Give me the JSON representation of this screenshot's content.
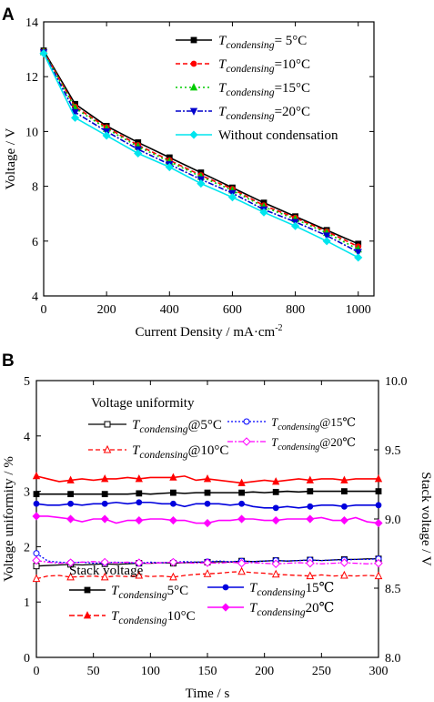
{
  "panels": {
    "a": {
      "label": "A"
    },
    "b": {
      "label": "B"
    }
  },
  "chart_data": [
    {
      "type": "line",
      "panel": "A",
      "xlabel": "Current Density / mA·cm",
      "xlabel_sup": "-2",
      "ylabel": "Voltage / V",
      "xlim": [
        0,
        1050
      ],
      "ylim": [
        4,
        14
      ],
      "xticks": [
        "0",
        "200",
        "400",
        "600",
        "800",
        "1000"
      ],
      "yticks": [
        "4",
        "6",
        "8",
        "10",
        "12",
        "14"
      ],
      "legend_position": "top-right",
      "x": [
        0,
        100,
        200,
        300,
        400,
        500,
        600,
        700,
        800,
        900,
        1000
      ],
      "series": [
        {
          "name": "T",
          "sub": "condensing",
          "suffix": "= 5°C",
          "color": "#000000",
          "dash": "",
          "marker": "square",
          "values": [
            12.95,
            11.0,
            10.2,
            9.6,
            9.05,
            8.5,
            7.95,
            7.4,
            6.9,
            6.4,
            5.9
          ]
        },
        {
          "name": "T",
          "sub": "condensing",
          "suffix": "=10°C",
          "color": "#ff0000",
          "dash": "5,3",
          "marker": "circle",
          "values": [
            12.92,
            10.9,
            10.15,
            9.5,
            8.95,
            8.4,
            7.9,
            7.3,
            6.85,
            6.35,
            5.8
          ]
        },
        {
          "name": "T",
          "sub": "condensing",
          "suffix": "=15°C",
          "color": "#00cc00",
          "dash": "2,3",
          "marker": "triangle",
          "values": [
            12.9,
            10.85,
            10.1,
            9.45,
            8.9,
            8.35,
            7.85,
            7.25,
            6.8,
            6.3,
            5.7
          ]
        },
        {
          "name": "T",
          "sub": "condensing",
          "suffix": "=20°C",
          "color": "#0000cc",
          "dash": "6,2,2,2",
          "marker": "down-triangle",
          "values": [
            12.88,
            10.7,
            10.0,
            9.35,
            8.8,
            8.25,
            7.75,
            7.15,
            6.7,
            6.2,
            5.6
          ]
        },
        {
          "name": "Without condensation",
          "sub": "",
          "suffix": "",
          "color": "#00e5ee",
          "dash": "",
          "marker": "diamond",
          "values": [
            12.85,
            10.5,
            9.85,
            9.2,
            8.7,
            8.1,
            7.6,
            7.05,
            6.55,
            6.0,
            5.4
          ]
        }
      ]
    },
    {
      "type": "line",
      "panel": "B",
      "xlabel": "Time / s",
      "ylabel": "Voltage uniformity / %",
      "ylabel_right": "Stack voltage / V",
      "xlim": [
        0,
        300
      ],
      "ylim": [
        0,
        5
      ],
      "ylim_right": [
        8.0,
        10.0
      ],
      "xticks": [
        "0",
        "50",
        "100",
        "150",
        "200",
        "250",
        "300"
      ],
      "yticks": [
        "0",
        "1",
        "2",
        "3",
        "4",
        "5"
      ],
      "yticks_right": [
        "8.0",
        "8.5",
        "9.0",
        "9.5",
        "10.0"
      ],
      "x": [
        0,
        10,
        20,
        30,
        40,
        50,
        60,
        70,
        80,
        90,
        100,
        110,
        120,
        130,
        140,
        150,
        160,
        170,
        180,
        190,
        200,
        210,
        220,
        230,
        240,
        250,
        260,
        270,
        280,
        290,
        300
      ],
      "legend_uniformity": {
        "heading": "Voltage uniformity",
        "items": [
          {
            "name": "T",
            "sub": "condensing",
            "suffix": "@5°C"
          },
          {
            "name": "T",
            "sub": "condensing",
            "suffix": "@10°C"
          },
          {
            "name": "T",
            "sub": "condensing",
            "suffix": "@15℃"
          },
          {
            "name": "T",
            "sub": "condensing",
            "suffix": "@20℃"
          }
        ]
      },
      "legend_stack": {
        "heading": "Stack voltage",
        "items": [
          {
            "name": "T",
            "sub": "condensing",
            "suffix": "5°C"
          },
          {
            "name": "T",
            "sub": "condensing",
            "suffix": "10°C"
          },
          {
            "name": "T",
            "sub": "condensing",
            "suffix": "15℃"
          },
          {
            "name": "T",
            "sub": "condensing",
            "suffix": "20℃"
          }
        ]
      },
      "uniformity_series": [
        {
          "color": "#000000",
          "marker": "square-open",
          "dash": "",
          "values": [
            1.65,
            1.66,
            1.67,
            1.68,
            1.67,
            1.68,
            1.69,
            1.68,
            1.69,
            1.7,
            1.7,
            1.71,
            1.7,
            1.71,
            1.72,
            1.72,
            1.73,
            1.72,
            1.74,
            1.73,
            1.74,
            1.75,
            1.74,
            1.75,
            1.76,
            1.75,
            1.76,
            1.77,
            1.77,
            1.78,
            1.78
          ]
        },
        {
          "color": "#ff0000",
          "marker": "triangle-open",
          "dash": "5,3",
          "values": [
            1.42,
            1.47,
            1.48,
            1.45,
            1.46,
            1.47,
            1.45,
            1.47,
            1.46,
            1.48,
            1.46,
            1.47,
            1.45,
            1.48,
            1.5,
            1.51,
            1.52,
            1.54,
            1.55,
            1.53,
            1.52,
            1.5,
            1.49,
            1.48,
            1.47,
            1.49,
            1.47,
            1.48,
            1.47,
            1.48,
            1.47
          ]
        },
        {
          "color": "#0000ff",
          "marker": "circle-open",
          "dash": "2,2",
          "values": [
            1.88,
            1.74,
            1.72,
            1.71,
            1.72,
            1.7,
            1.71,
            1.72,
            1.71,
            1.7,
            1.72,
            1.71,
            1.72,
            1.73,
            1.72,
            1.73,
            1.74,
            1.73,
            1.74,
            1.73,
            1.74,
            1.75,
            1.74,
            1.75,
            1.76,
            1.75,
            1.76,
            1.76,
            1.77,
            1.77,
            1.78
          ]
        },
        {
          "color": "#ff00ff",
          "marker": "diamond-open",
          "dash": "6,2,2,2",
          "values": [
            1.75,
            1.72,
            1.7,
            1.71,
            1.72,
            1.73,
            1.72,
            1.71,
            1.72,
            1.71,
            1.7,
            1.71,
            1.72,
            1.71,
            1.7,
            1.71,
            1.7,
            1.72,
            1.7,
            1.71,
            1.7,
            1.69,
            1.7,
            1.71,
            1.7,
            1.69,
            1.7,
            1.71,
            1.7,
            1.69,
            1.7
          ]
        }
      ],
      "stack_series": [
        {
          "color": "#000000",
          "marker": "square",
          "values": [
            9.18,
            9.18,
            9.18,
            9.18,
            9.18,
            9.18,
            9.18,
            9.18,
            9.18,
            9.185,
            9.18,
            9.185,
            9.19,
            9.185,
            9.19,
            9.19,
            9.19,
            9.19,
            9.19,
            9.195,
            9.19,
            9.195,
            9.2,
            9.195,
            9.2,
            9.2,
            9.2,
            9.2,
            9.2,
            9.2,
            9.2
          ]
        },
        {
          "color": "#ff0000",
          "marker": "triangle",
          "values": [
            9.31,
            9.29,
            9.27,
            9.28,
            9.29,
            9.28,
            9.29,
            9.29,
            9.3,
            9.29,
            9.3,
            9.3,
            9.3,
            9.31,
            9.28,
            9.29,
            9.28,
            9.27,
            9.26,
            9.27,
            9.28,
            9.27,
            9.28,
            9.29,
            9.28,
            9.29,
            9.29,
            9.28,
            9.29,
            9.29,
            9.29
          ]
        },
        {
          "color": "#0000dd",
          "marker": "circle",
          "values": [
            9.11,
            9.1,
            9.1,
            9.11,
            9.1,
            9.11,
            9.11,
            9.12,
            9.11,
            9.12,
            9.12,
            9.11,
            9.11,
            9.09,
            9.11,
            9.11,
            9.11,
            9.1,
            9.11,
            9.09,
            9.08,
            9.08,
            9.09,
            9.08,
            9.09,
            9.1,
            9.1,
            9.09,
            9.1,
            9.1,
            9.1
          ]
        },
        {
          "color": "#ff00ff",
          "marker": "diamond",
          "values": [
            9.02,
            9.02,
            9.01,
            9.0,
            8.98,
            9.0,
            9.0,
            8.97,
            8.99,
            8.99,
            9.0,
            9.0,
            8.99,
            8.99,
            8.97,
            8.97,
            8.99,
            8.99,
            9.0,
            9.0,
            8.99,
            8.99,
            9.0,
            9.0,
            9.0,
            9.01,
            8.99,
            8.99,
            9.01,
            8.98,
            8.97
          ]
        }
      ]
    }
  ]
}
